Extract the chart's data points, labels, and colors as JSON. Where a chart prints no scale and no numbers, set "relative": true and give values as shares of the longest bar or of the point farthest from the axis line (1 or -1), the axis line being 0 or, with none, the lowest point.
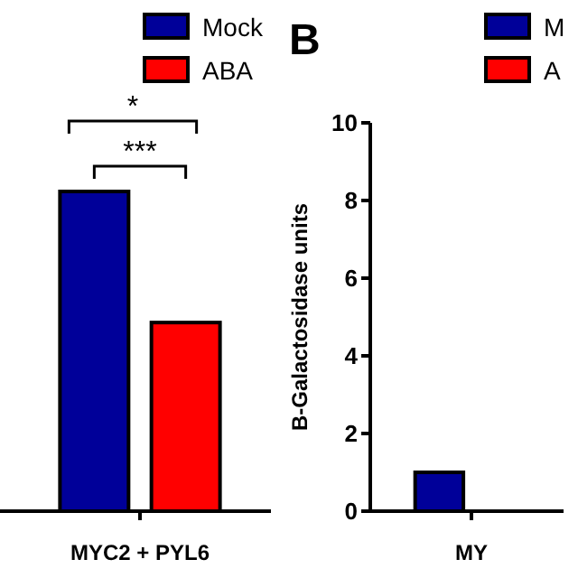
{
  "chart_data": [
    {
      "type": "bar",
      "relative": true,
      "categories": [
        "MYC2 + PYL6"
      ],
      "series": [
        {
          "name": "Mock",
          "color": "#000099",
          "values": [
            1
          ]
        },
        {
          "name": "ABA",
          "color": "#ff0000",
          "values": [
            0.59
          ]
        }
      ],
      "annotations": [
        "*",
        "***"
      ],
      "legend": "top right"
    },
    {
      "type": "bar",
      "title": "B",
      "ylabel": "B-Galactosidase units",
      "categories": [
        "MY"
      ],
      "ylim": [
        0,
        10
      ],
      "yticks": [
        0,
        2,
        4,
        6,
        8,
        10
      ],
      "series": [
        {
          "name": "M",
          "color": "#000099",
          "values": [
            1.0
          ]
        },
        {
          "name": "A",
          "color": "#ff0000",
          "values": [
            null
          ]
        }
      ],
      "legend": "top right"
    }
  ]
}
